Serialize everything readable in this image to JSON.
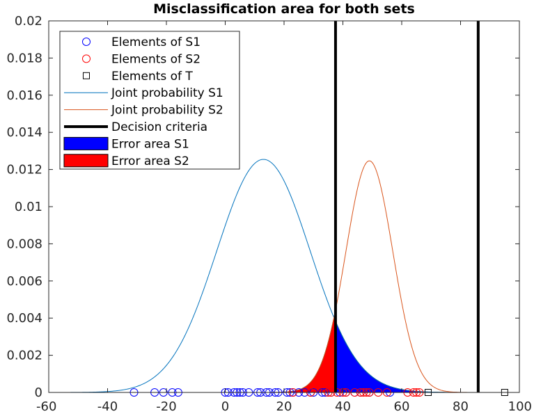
{
  "chart_data": {
    "type": "line",
    "title": "Misclassification area for both sets",
    "xlabel": "",
    "ylabel": "",
    "xlim": [
      -60,
      100
    ],
    "ylim": [
      0,
      0.02
    ],
    "x_ticks": [
      -60,
      -40,
      -20,
      0,
      20,
      40,
      60,
      80,
      100
    ],
    "y_ticks": [
      0,
      0.002,
      0.004,
      0.006,
      0.008,
      0.01,
      0.012,
      0.014,
      0.016,
      0.018,
      0.02
    ],
    "x_tick_labels": [
      "-60",
      "-40",
      "-20",
      "0",
      "20",
      "40",
      "60",
      "80",
      "100"
    ],
    "y_tick_labels": [
      "0",
      "0.002",
      "0.004",
      "0.006",
      "0.008",
      "0.01",
      "0.012",
      "0.014",
      "0.016",
      "0.018",
      "0.02"
    ],
    "grid": false,
    "legend_position": "top-left",
    "series": [
      {
        "name": "Elements of S1",
        "kind": "points",
        "marker": "circle",
        "color": "#0000ff",
        "x": [
          -31,
          -24,
          -21,
          -18,
          -16,
          0,
          1,
          3,
          4,
          5,
          6,
          8,
          11,
          12,
          14,
          15,
          17,
          18,
          21,
          22,
          23,
          25,
          27,
          29,
          30,
          33,
          34,
          36,
          39,
          41,
          44,
          46,
          49,
          56
        ],
        "y": [
          0,
          0,
          0,
          0,
          0,
          0,
          0,
          0,
          0,
          0,
          0,
          0,
          0,
          0,
          0,
          0,
          0,
          0,
          0,
          0,
          0,
          0,
          0,
          0,
          0,
          0,
          0,
          0,
          0,
          0,
          0,
          0,
          0,
          0
        ]
      },
      {
        "name": "Elements of S2",
        "kind": "points",
        "marker": "circle",
        "color": "#ff0000",
        "x": [
          23,
          29,
          35,
          36,
          38,
          40,
          41,
          44,
          46,
          47,
          48,
          49,
          52,
          55,
          62,
          64,
          65,
          66
        ],
        "y": [
          0,
          0,
          0,
          0,
          0,
          0,
          0,
          0,
          0,
          0,
          0,
          0,
          0,
          0,
          0,
          0,
          0,
          0
        ]
      },
      {
        "name": "Elements of T",
        "kind": "points",
        "marker": "square",
        "color": "#000000",
        "x": [
          69,
          95
        ],
        "y": [
          0,
          0
        ]
      },
      {
        "name": "Joint probability S1",
        "kind": "curve",
        "color": "#0072bd",
        "distribution": {
          "family": "normal",
          "mean": 13,
          "sd": 15.9,
          "weight": 0.5
        },
        "peak": {
          "x": 13,
          "y": 0.01255
        }
      },
      {
        "name": "Joint probability S2",
        "kind": "curve",
        "color": "#d95319",
        "distribution": {
          "family": "normal",
          "mean": 49,
          "sd": 8.0,
          "weight": 0.25
        },
        "peak": {
          "x": 49,
          "y": 0.01245
        }
      },
      {
        "name": "Decision criteria",
        "kind": "vline",
        "color": "#000000",
        "x": [
          37.5,
          86
        ]
      },
      {
        "name": "Error area S1",
        "kind": "area",
        "color": "#0000ff",
        "under": "Joint probability S1",
        "x_range": [
          37.5,
          86
        ]
      },
      {
        "name": "Error area S2",
        "kind": "area",
        "color": "#ff0000",
        "under": "Joint probability S2",
        "x_range": [
          -60,
          37.5
        ]
      }
    ]
  }
}
